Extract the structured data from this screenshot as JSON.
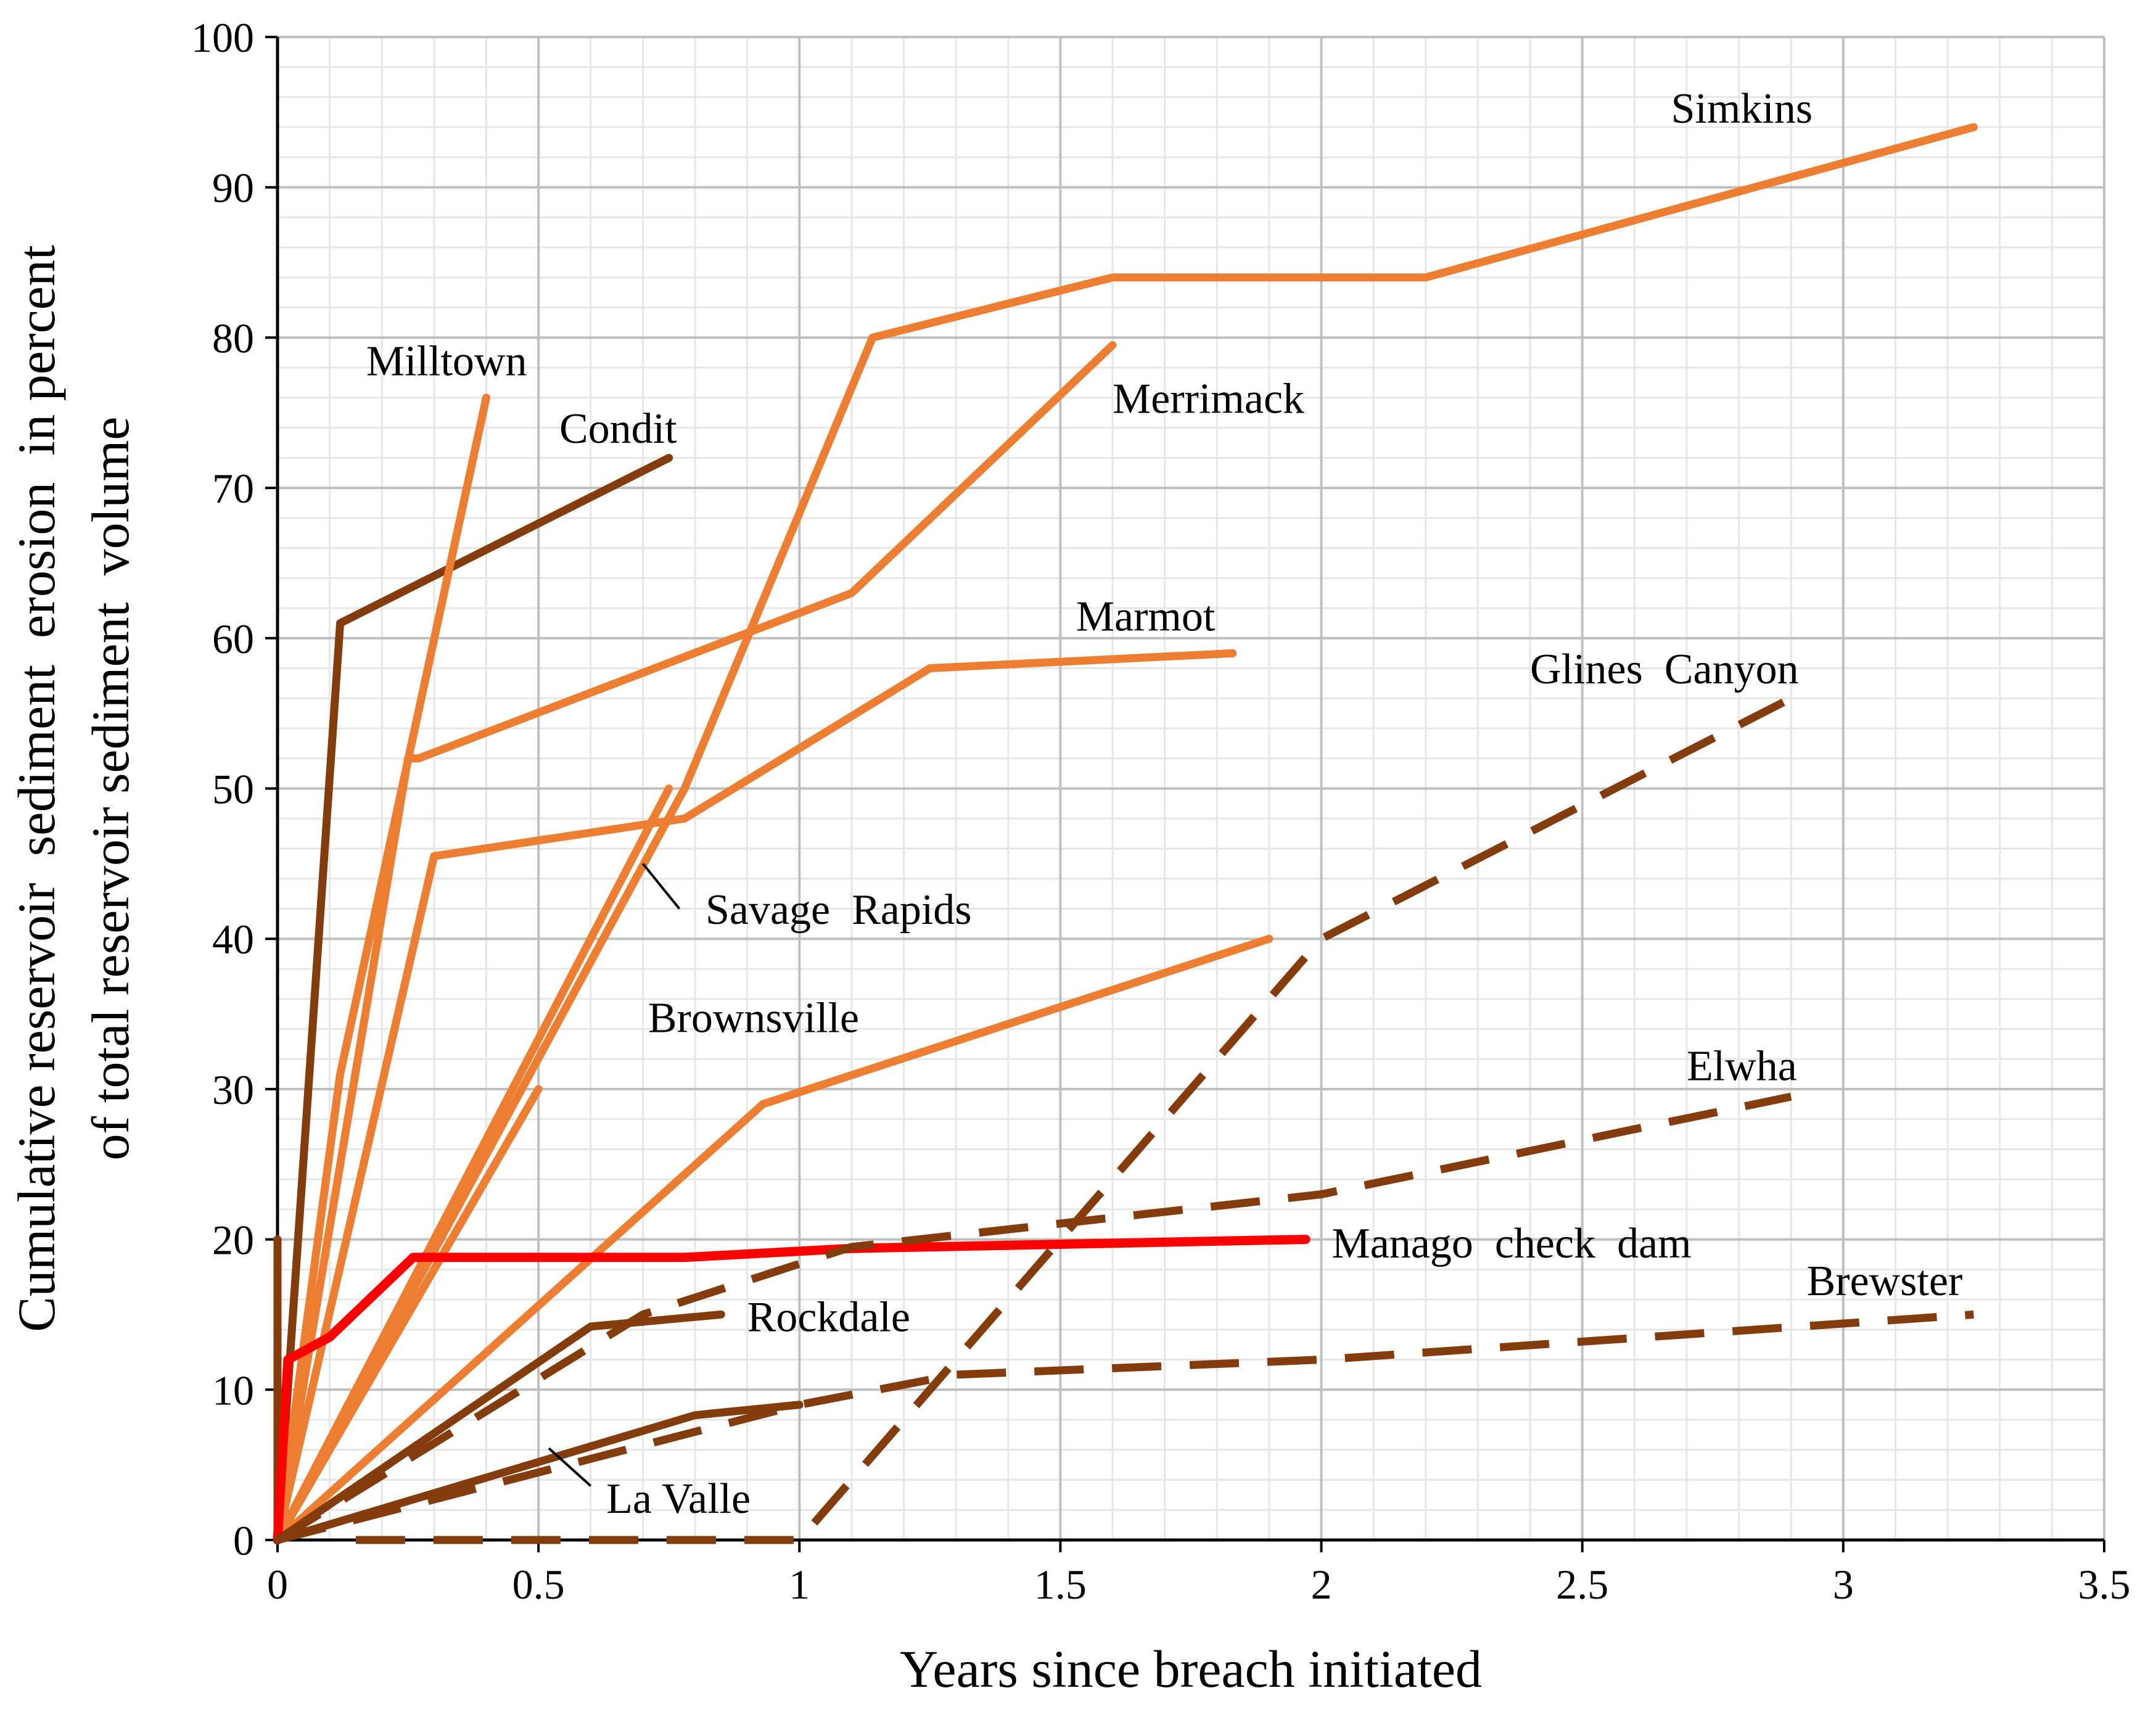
{
  "chart_data": {
    "type": "line",
    "xlabel": "Years since breach initiated",
    "ylabel_line1": "Cumulative reservoir  sediment  erosion  in percent",
    "ylabel_line2": "of total reservoir sediment  volume",
    "xlim": [
      0,
      3.5
    ],
    "ylim": [
      0,
      100
    ],
    "x_ticks": [
      "0",
      "0.5",
      "1",
      "1.5",
      "2",
      "2.5",
      "3",
      "3.5"
    ],
    "y_ticks": [
      "0",
      "10",
      "20",
      "30",
      "40",
      "50",
      "60",
      "70",
      "80",
      "90",
      "100"
    ],
    "grid": {
      "major": true,
      "minor": true,
      "x_minor_step": 0.1,
      "y_minor_step": 2
    },
    "colors": {
      "light": "#ED7D31",
      "dark": "#843C0C",
      "highlight": "#FF0000",
      "grid_major": "#BFBFBF",
      "grid_minor": "#E6E6E6"
    },
    "series": [
      {
        "color": "#843C0C",
        "style": "solid",
        "points": [
          [
            0,
            0
          ],
          [
            0.12,
            61
          ],
          [
            0.75,
            72
          ]
        ]
      },
      {
        "color": "#843C0C",
        "style": "solid",
        "points": [
          [
            0,
            0
          ],
          [
            0,
            20
          ]
        ]
      },
      {
        "color": "#ED7D31",
        "style": "solid",
        "points": [
          [
            0,
            0
          ],
          [
            0.12,
            31
          ],
          [
            0.4,
            76
          ]
        ]
      },
      {
        "color": "#ED7D31",
        "style": "solid",
        "points": [
          [
            0,
            0
          ],
          [
            0.25,
            52
          ],
          [
            0.27,
            52
          ],
          [
            1.1,
            63
          ],
          [
            1.6,
            79.5
          ]
        ]
      },
      {
        "color": "#ED7D31",
        "style": "solid",
        "points": [
          [
            0,
            0
          ],
          [
            0.3,
            45.5
          ],
          [
            0.78,
            48
          ],
          [
            1.25,
            58
          ],
          [
            1.83,
            59
          ]
        ]
      },
      {
        "color": "#ED7D31",
        "style": "solid",
        "points": [
          [
            0,
            0
          ],
          [
            0.78,
            50
          ],
          [
            1.14,
            80
          ],
          [
            1.6,
            84
          ],
          [
            2.2,
            84
          ],
          [
            3.25,
            94
          ]
        ]
      },
      {
        "color": "#ED7D31",
        "style": "solid",
        "points": [
          [
            0,
            0
          ],
          [
            0.75,
            50
          ]
        ]
      },
      {
        "color": "#ED7D31",
        "style": "solid",
        "points": [
          [
            0,
            0
          ],
          [
            0.5,
            30
          ]
        ]
      },
      {
        "color": "#ED7D31",
        "style": "solid",
        "points": [
          [
            0,
            0
          ],
          [
            0.93,
            29
          ],
          [
            1.9,
            40
          ]
        ]
      },
      {
        "color": "#FF0000",
        "style": "solid",
        "points": [
          [
            0,
            0
          ],
          [
            0.02,
            12
          ],
          [
            0.1,
            13.5
          ],
          [
            0.26,
            18.8
          ],
          [
            0.78,
            18.8
          ],
          [
            1.1,
            19.4
          ],
          [
            1.97,
            20
          ]
        ]
      },
      {
        "color": "#843C0C",
        "style": "solid",
        "points": [
          [
            0,
            0
          ],
          [
            0.6,
            14.2
          ],
          [
            0.85,
            15
          ]
        ]
      },
      {
        "color": "#843C0C",
        "style": "solid",
        "points": [
          [
            0,
            0
          ],
          [
            0.8,
            8.3
          ],
          [
            1.0,
            9
          ]
        ]
      },
      {
        "color": "#843C0C",
        "style": "dashed",
        "points": [
          [
            0,
            0
          ],
          [
            0.7,
            15
          ],
          [
            1.1,
            19.5
          ],
          [
            2.0,
            23
          ],
          [
            2.9,
            29.5
          ]
        ]
      },
      {
        "color": "#843C0C",
        "style": "dashed",
        "points": [
          [
            0,
            0
          ],
          [
            1.0,
            9
          ],
          [
            1.3,
            11
          ],
          [
            2.0,
            12
          ],
          [
            3.25,
            15
          ]
        ]
      },
      {
        "color": "#843C0C",
        "style": "dashed",
        "points": [
          [
            0.15,
            0
          ],
          [
            1.0,
            0
          ],
          [
            1.5,
            20
          ],
          [
            2.0,
            40
          ],
          [
            2.9,
            56
          ]
        ]
      }
    ],
    "labels": [
      {
        "text": "Milltown",
        "x": 0.17,
        "y": 77.5,
        "color": "#000000"
      },
      {
        "text": "Condit",
        "x": 0.54,
        "y": 73,
        "color": "#000000"
      },
      {
        "text": "Merrimack",
        "x": 1.6,
        "y": 75,
        "color": "#000000"
      },
      {
        "text": "Simkins",
        "x": 2.67,
        "y": 94.3,
        "color": "#000000"
      },
      {
        "text": "Marmot",
        "x": 1.53,
        "y": 60.5,
        "color": "#000000"
      },
      {
        "text": "Glines  Canyon",
        "x": 2.4,
        "y": 57,
        "color": "#000000"
      },
      {
        "text": "Savage  Rapids",
        "x": 0.82,
        "y": 41,
        "color": "#000000"
      },
      {
        "text": "Brownsville",
        "x": 0.71,
        "y": 33.8,
        "color": "#000000"
      },
      {
        "text": "Elwha",
        "x": 2.7,
        "y": 30.6,
        "color": "#000000"
      },
      {
        "text": "Manago  check  dam",
        "x": 2.02,
        "y": 18.8,
        "color": "#FF0000"
      },
      {
        "text": "Brewster",
        "x": 2.93,
        "y": 16.3,
        "color": "#000000"
      },
      {
        "text": "Rockdale",
        "x": 0.9,
        "y": 13.9,
        "color": "#000000"
      },
      {
        "text": "La Valle",
        "x": 0.63,
        "y": 1.8,
        "color": "#000000"
      }
    ],
    "leaders": [
      {
        "from": [
          0.7,
          45
        ],
        "to": [
          0.77,
          42
        ]
      },
      {
        "from": [
          0.52,
          6.1
        ],
        "to": [
          0.6,
          3.6
        ]
      }
    ]
  }
}
